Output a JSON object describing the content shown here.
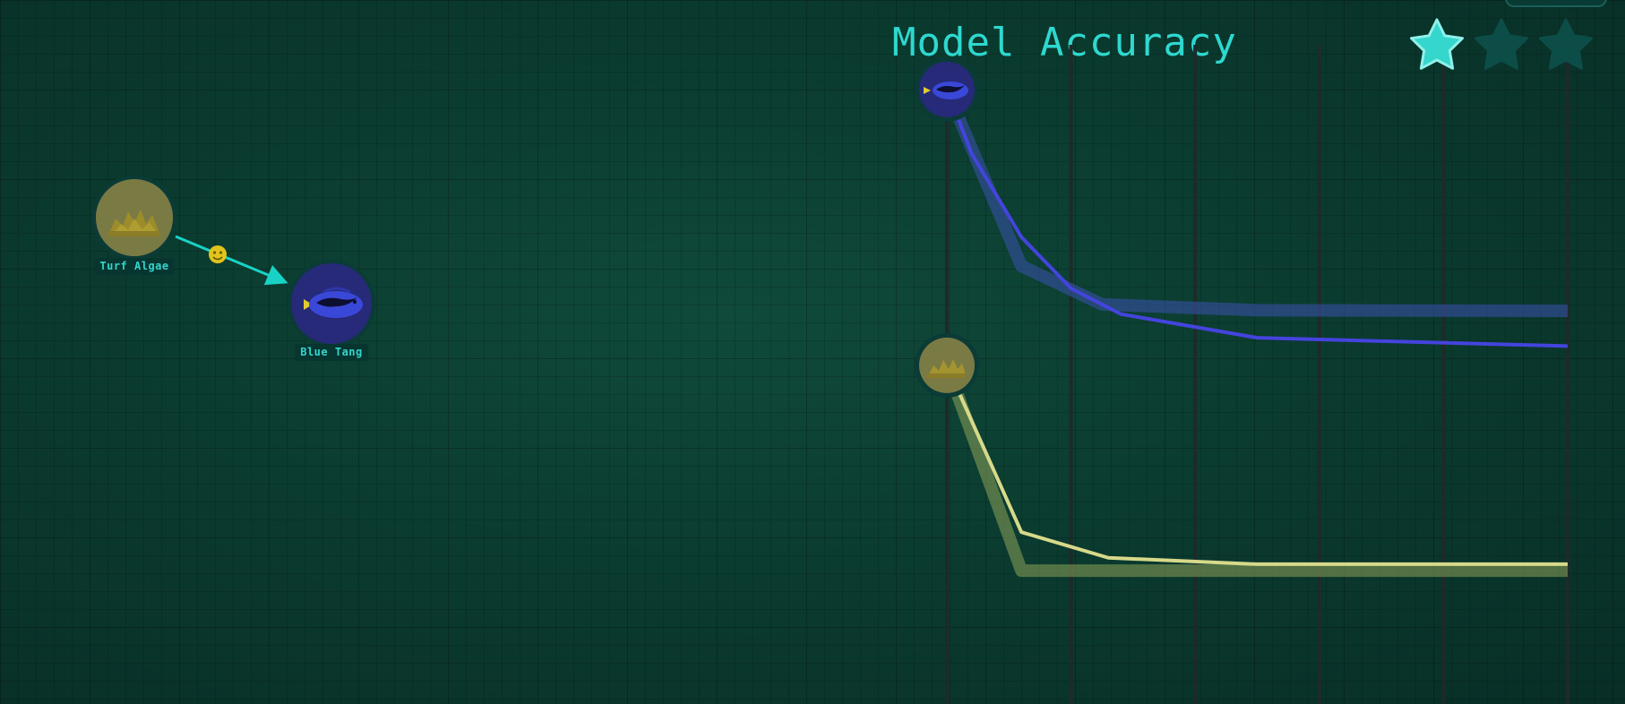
{
  "food_web": {
    "nodes": [
      {
        "id": "turf-algae",
        "label": "Turf Algae",
        "icon": "algae-icon",
        "fill": "#7a7a44",
        "ring": "#0b3b36"
      },
      {
        "id": "blue-tang",
        "label": "Blue Tang",
        "icon": "fish-icon",
        "fill": "#262a78",
        "ring": "#0b3b36"
      }
    ],
    "link": {
      "from": "Turf Algae",
      "to": "Blue Tang",
      "color": "#19d2c6",
      "marker_icon": "smiley-icon",
      "marker_color": "#e0c41e"
    }
  },
  "chart": {
    "title": "Model Accuracy",
    "stars": {
      "filled": 1,
      "total": 3,
      "filled_color": "#35d6cc",
      "empty_color": "#0c4d48"
    }
  },
  "chart_data": {
    "type": "line",
    "title": "Model Accuracy",
    "xlabel": "",
    "ylabel": "",
    "x": [
      0,
      1,
      2,
      3,
      4,
      5
    ],
    "xlim": [
      0,
      5
    ],
    "ylim": [
      0,
      1
    ],
    "grid": "vertical",
    "series": [
      {
        "species": "Blue Tang",
        "icon": "fish-icon",
        "role": "model",
        "color": "#4444dd",
        "width": 4,
        "points": [
          [
            0.0,
            0.93
          ],
          [
            0.2,
            0.83
          ],
          [
            0.6,
            0.7
          ],
          [
            1.0,
            0.62
          ],
          [
            1.4,
            0.58
          ],
          [
            2.5,
            0.543
          ],
          [
            5.0,
            0.53
          ]
        ]
      },
      {
        "species": "Blue Tang",
        "icon": "fish-icon",
        "role": "target",
        "color": "#3d52b0",
        "width": 14,
        "opacity": 0.55,
        "points": [
          [
            0.0,
            0.93
          ],
          [
            0.6,
            0.655
          ],
          [
            1.25,
            0.595
          ],
          [
            2.5,
            0.586
          ],
          [
            5.0,
            0.585
          ]
        ]
      },
      {
        "species": "Turf Algae",
        "icon": "algae-icon",
        "role": "model",
        "color": "#d7d98a",
        "width": 4,
        "points": [
          [
            0.0,
            0.5
          ],
          [
            0.6,
            0.24
          ],
          [
            1.3,
            0.2
          ],
          [
            2.5,
            0.19
          ],
          [
            5.0,
            0.19
          ]
        ]
      },
      {
        "species": "Turf Algae",
        "icon": "algae-icon",
        "role": "target",
        "color": "#8ea25a",
        "width": 14,
        "opacity": 0.55,
        "points": [
          [
            0.0,
            0.5
          ],
          [
            0.6,
            0.18
          ],
          [
            1.3,
            0.18
          ],
          [
            5.0,
            0.18
          ]
        ]
      }
    ]
  }
}
